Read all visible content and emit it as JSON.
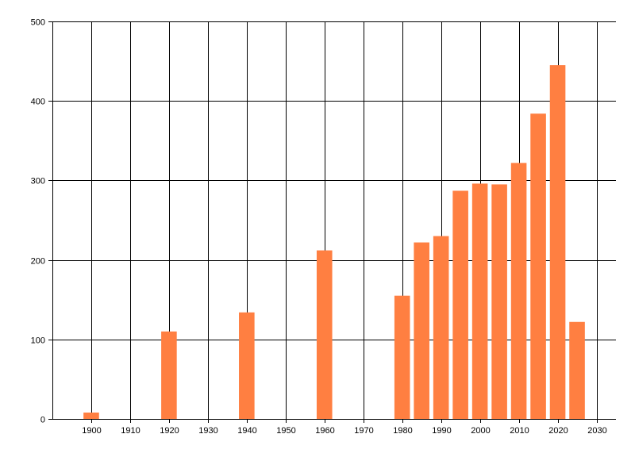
{
  "chart_data": {
    "type": "bar",
    "title": "",
    "xlabel": "",
    "ylabel": "",
    "x": [
      1900,
      1920,
      1940,
      1960,
      1980,
      1985,
      1990,
      1995,
      2000,
      2005,
      2010,
      2015,
      2020,
      2025
    ],
    "values": [
      8,
      110,
      134,
      212,
      155,
      222,
      230,
      287,
      296,
      295,
      322,
      384,
      445,
      122
    ],
    "xlim": [
      1890,
      2035
    ],
    "ylim": [
      0,
      500
    ],
    "xticks": [
      1900,
      1910,
      1920,
      1930,
      1940,
      1950,
      1960,
      1970,
      1980,
      1990,
      2000,
      2010,
      2020,
      2030
    ],
    "xtick_labels": [
      "1900",
      "1910",
      "1920",
      "1930",
      "1940",
      "1950",
      "1960",
      "1970",
      "1980",
      "1990",
      "2000",
      "2010",
      "2020",
      "2030"
    ],
    "yticks": [
      0,
      100,
      200,
      300,
      400,
      500
    ],
    "ytick_labels": [
      "0",
      "100",
      "200",
      "300",
      "400",
      "500"
    ],
    "grid": true,
    "legend": "none",
    "colors": {
      "bar": "#FF7F41",
      "grid": "#000000",
      "axis": "#000000",
      "background": "#FFFFFF"
    }
  }
}
